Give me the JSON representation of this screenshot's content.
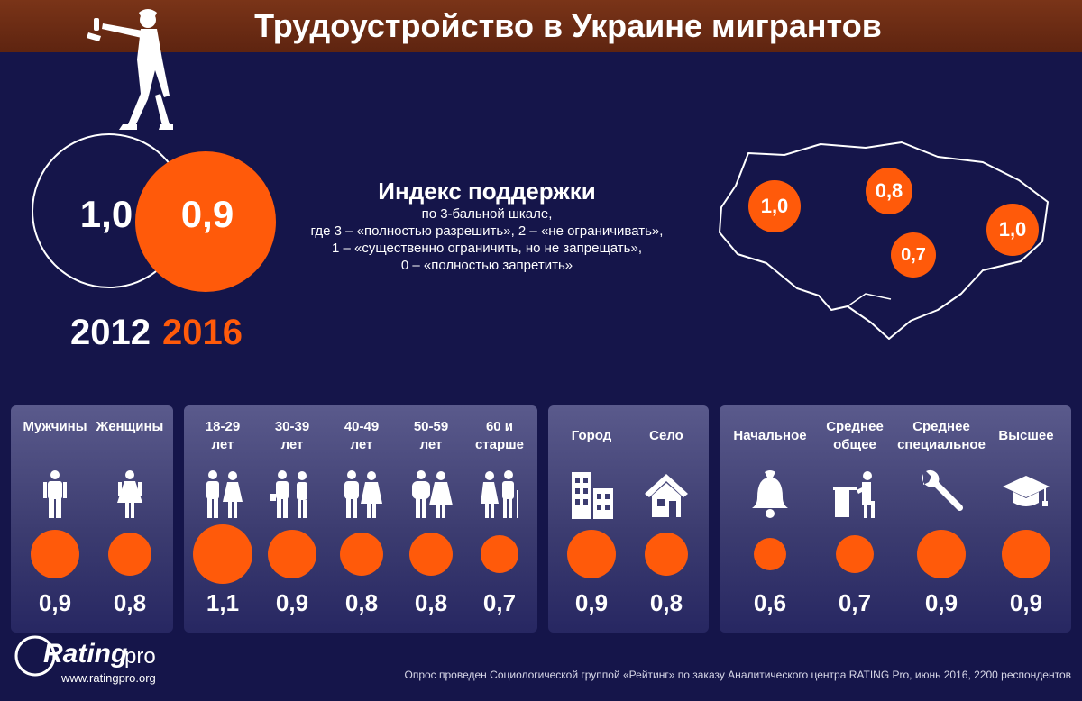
{
  "title": "Трудоустройство в Украине мигрантов",
  "overall": {
    "y2012": {
      "year": "2012",
      "value": "1,0"
    },
    "y2016": {
      "year": "2016",
      "value": "0,9"
    }
  },
  "index": {
    "title": "Индекс поддержки",
    "lines": [
      "по 3-бальной шкале,",
      "где 3 – «полностью разрешить», 2 – «не ограничивать»,",
      "1 – «существенно ограничить, но не запрещать»,",
      "0 – «полностью запретить»"
    ]
  },
  "map": {
    "regions": [
      {
        "value": "1,0",
        "region": "west"
      },
      {
        "value": "0,8",
        "region": "center"
      },
      {
        "value": "0,7",
        "region": "south"
      },
      {
        "value": "1,0",
        "region": "east"
      }
    ]
  },
  "groups": [
    {
      "items": [
        {
          "label": "Мужчины",
          "value": "0,9",
          "num": 0.9,
          "icon": "man-icon"
        },
        {
          "label": "Женщины",
          "value": "0,8",
          "num": 0.8,
          "icon": "woman-icon"
        }
      ]
    },
    {
      "items": [
        {
          "label": "18-29 лет",
          "value": "1,1",
          "num": 1.1,
          "icon": "couple-young-icon"
        },
        {
          "label": "30-39 лет",
          "value": "0,9",
          "num": 0.9,
          "icon": "couple-business-icon"
        },
        {
          "label": "40-49 лет",
          "value": "0,8",
          "num": 0.8,
          "icon": "couple-middle-icon"
        },
        {
          "label": "50-59 лет",
          "value": "0,8",
          "num": 0.8,
          "icon": "couple-mature-icon"
        },
        {
          "label": "60 и старше",
          "value": "0,7",
          "num": 0.7,
          "icon": "couple-elderly-icon"
        }
      ]
    },
    {
      "items": [
        {
          "label": "Город",
          "value": "0,9",
          "num": 0.9,
          "icon": "city-buildings-icon"
        },
        {
          "label": "Село",
          "value": "0,8",
          "num": 0.8,
          "icon": "house-icon"
        }
      ]
    },
    {
      "items": [
        {
          "label": "Начальное",
          "value": "0,6",
          "num": 0.6,
          "icon": "school-bell-icon"
        },
        {
          "label": "Среднее общее",
          "value": "0,7",
          "num": 0.7,
          "icon": "student-desk-icon"
        },
        {
          "label": "Среднее специальное",
          "value": "0,9",
          "num": 0.9,
          "icon": "wrench-icon"
        },
        {
          "label": "Высшее",
          "value": "0,9",
          "num": 0.9,
          "icon": "graduation-cap-icon"
        }
      ]
    }
  ],
  "logo": {
    "rating": "Rating",
    "pro": "pro",
    "url": "www.ratingpro.org"
  },
  "footnote": "Опрос проведен Социологической группой «Рейтинг» по заказу Аналитического центра RATING Pro, июнь 2016, 2200 респондентов",
  "colors": {
    "background": "#15154a",
    "accent": "#ff5a0a",
    "header": "#6b2c14"
  }
}
